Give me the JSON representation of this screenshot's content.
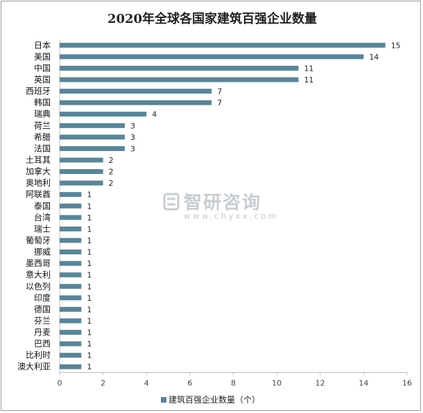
{
  "chart_data": {
    "type": "bar",
    "orientation": "horizontal",
    "title": "2020年全球各国家建筑百强企业数量",
    "categories": [
      "日本",
      "美国",
      "中国",
      "英国",
      "西班牙",
      "韩国",
      "瑞典",
      "荷兰",
      "希腊",
      "法国",
      "土耳其",
      "加拿大",
      "奥地利",
      "阿联酋",
      "泰国",
      "台湾",
      "瑞士",
      "葡萄牙",
      "挪威",
      "墨西哥",
      "意大利",
      "以色列",
      "印度",
      "德国",
      "芬兰",
      "丹麦",
      "巴西",
      "比利时",
      "澳大利亚"
    ],
    "series": [
      {
        "name": "建筑百强企业数量（个）",
        "values": [
          15,
          14,
          11,
          11,
          7,
          7,
          4,
          3,
          3,
          3,
          2,
          2,
          2,
          1,
          1,
          1,
          1,
          1,
          1,
          1,
          1,
          1,
          1,
          1,
          1,
          1,
          1,
          1,
          1
        ]
      }
    ],
    "xlim": [
      0,
      16
    ],
    "xticks": [
      0,
      2,
      4,
      6,
      8,
      10,
      12,
      14,
      16
    ],
    "legend_position": "bottom",
    "grid": false,
    "colors": {
      "bar": "#5a8497",
      "axis": "#bfbfbf"
    }
  },
  "watermark": {
    "name": "智研咨询",
    "url": "www.chyxx.com"
  }
}
